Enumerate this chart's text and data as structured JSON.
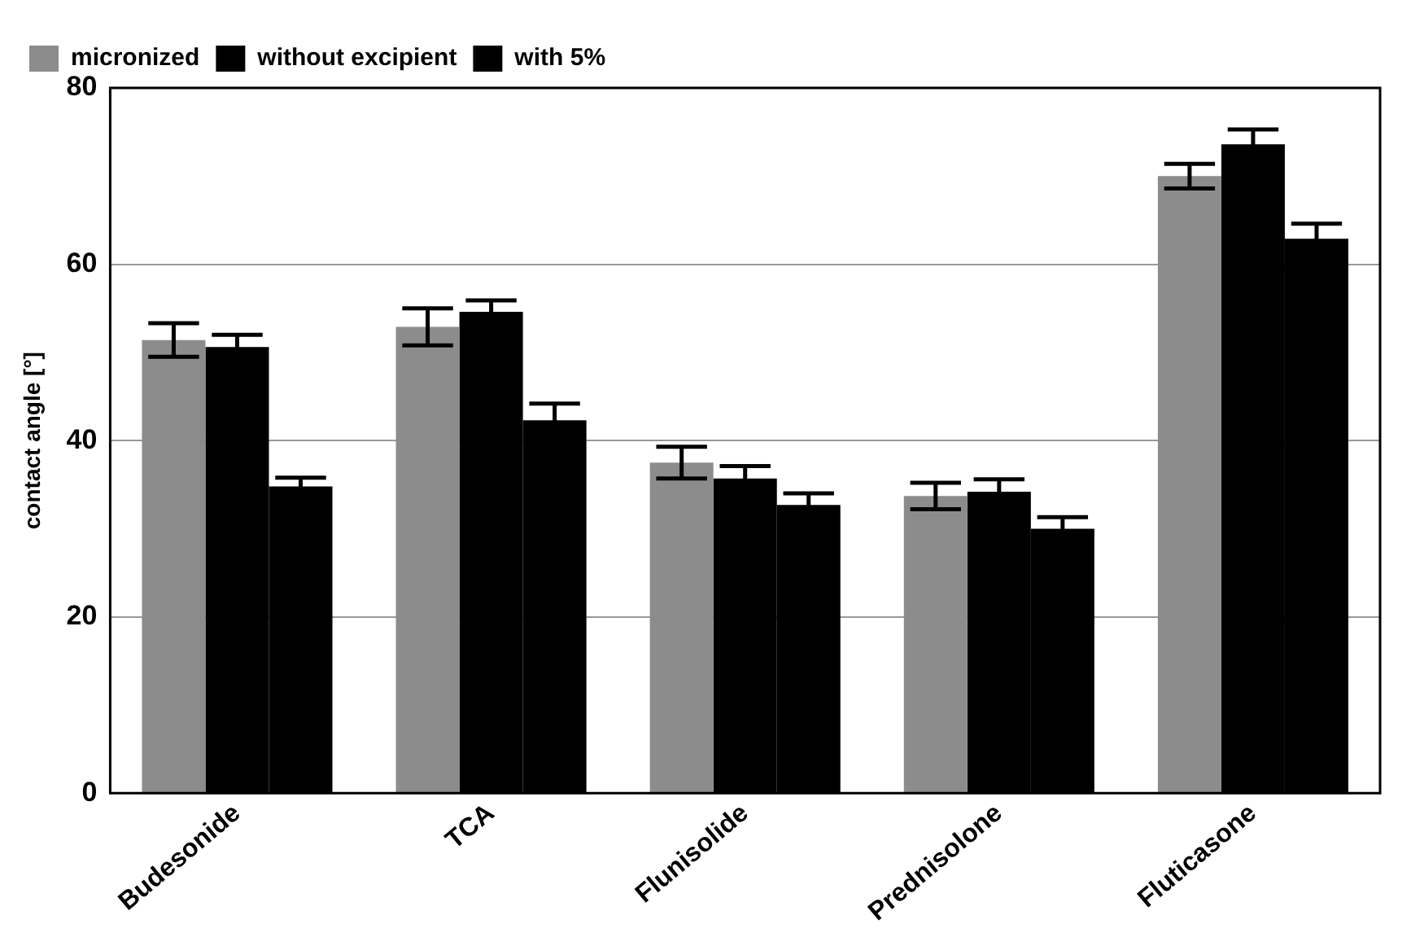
{
  "chart_data": {
    "type": "bar",
    "ylabel": "contact angle [°]",
    "categories": [
      "Budesonide",
      "TCA",
      "Flunisolide",
      "Prednisolone",
      "Fluticasone"
    ],
    "series": [
      {
        "name": "micronized",
        "color": "#8c8c8c",
        "values": [
          51.4,
          52.9,
          37.5,
          33.7,
          70.0
        ],
        "errors": [
          1.9,
          2.1,
          1.8,
          1.5,
          1.4
        ]
      },
      {
        "name": "without excipient",
        "color": "#000000",
        "values": [
          50.6,
          54.6,
          35.7,
          34.2,
          73.6
        ],
        "errors": [
          1.4,
          1.3,
          1.4,
          1.4,
          1.7
        ]
      },
      {
        "name": "with 5%",
        "color": "#000000",
        "values": [
          34.8,
          42.3,
          32.7,
          30.0,
          62.9
        ],
        "errors": [
          1.0,
          1.9,
          1.3,
          1.3,
          1.7
        ]
      }
    ],
    "ylim": [
      0,
      80
    ],
    "yticks": [
      0,
      20,
      40,
      60,
      80
    ],
    "grid": "y",
    "legend": "top left"
  }
}
